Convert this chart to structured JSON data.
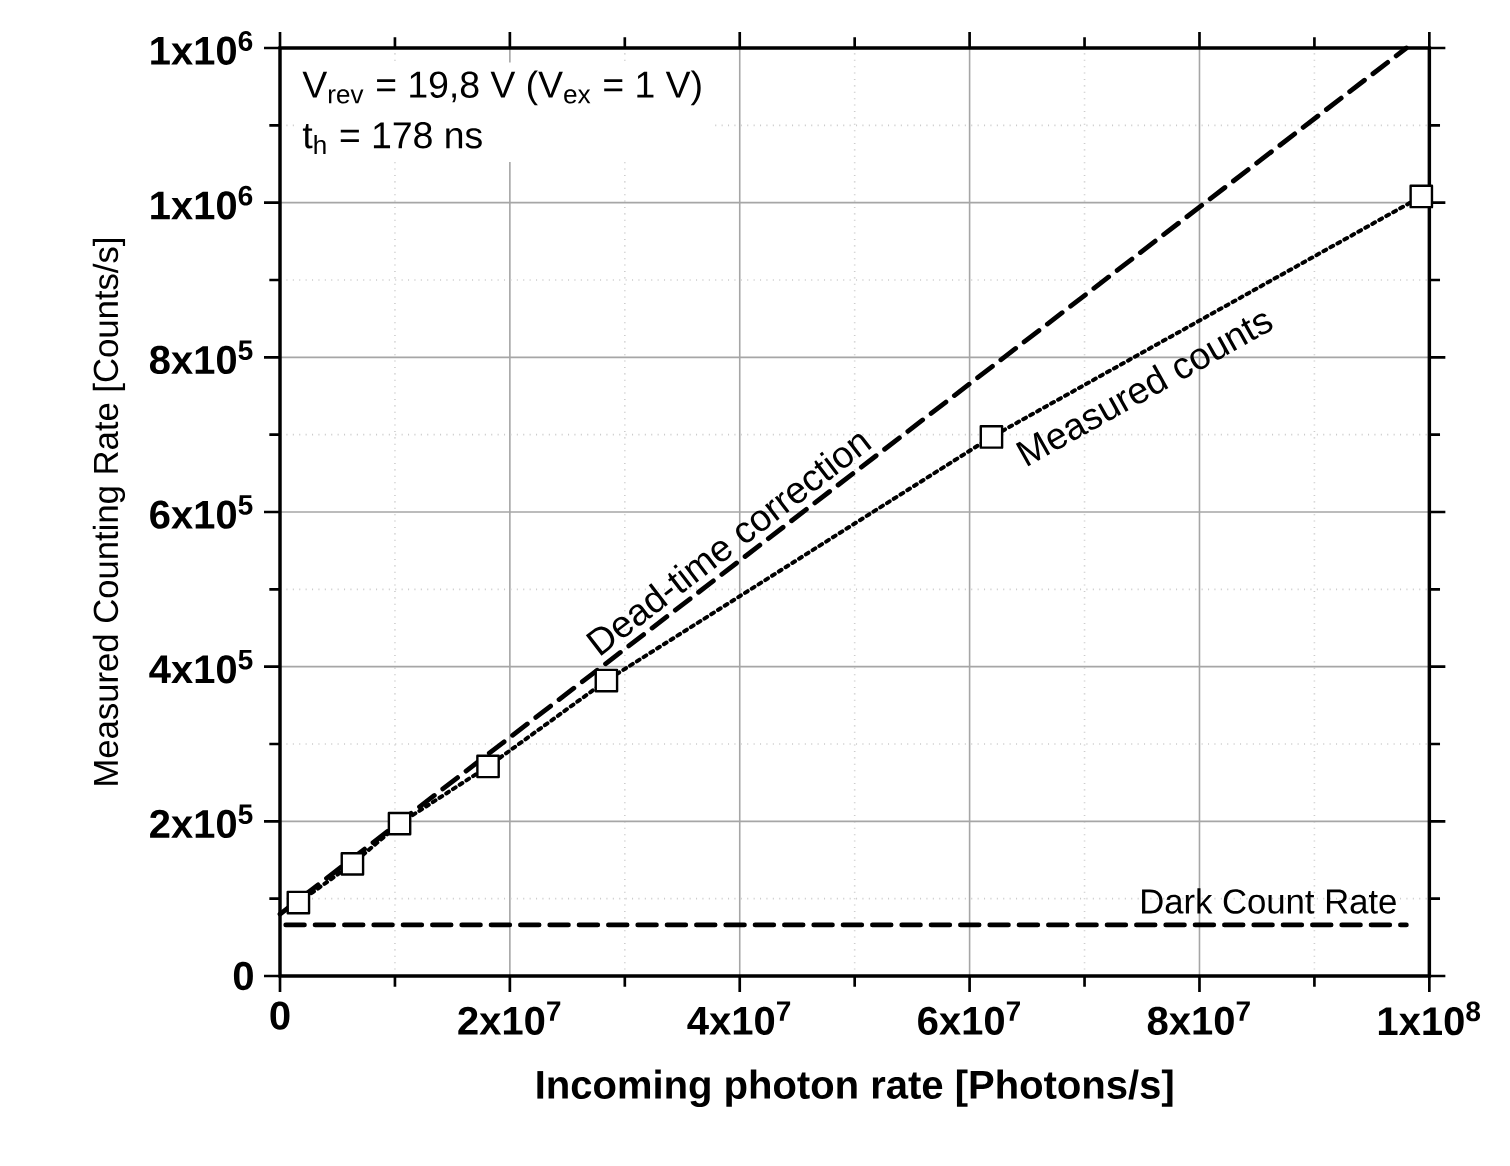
{
  "chart_data": {
    "type": "line",
    "xlabel": "Incoming photon rate [Photons/s]",
    "ylabel": "Measured Counting Rate [Counts/s]",
    "annotations": [
      "V$_{rev}$ = 19,8 V (V$_{ex}$ = 1 V)",
      "t$_{h}$ = 178 ns"
    ],
    "series": [
      {
        "name": "Dead-time correction",
        "color": "#000000",
        "marker": "none",
        "line_style": "dashed",
        "x": [
          0,
          98000000
        ],
        "values": [
          80000,
          1200000
        ]
      },
      {
        "name": "Measured counts",
        "color": "#000000",
        "marker": "square",
        "line_style": "dotted",
        "x": [
          1600000,
          6300000,
          10400000,
          18100000,
          28400000,
          61900000,
          99300000
        ],
        "values": [
          95000,
          145000,
          197000,
          271000,
          382000,
          697000,
          1008000
        ]
      }
    ],
    "ref_lines": [
      {
        "axis": "y",
        "value": 66000,
        "label": "Dark Count Rate",
        "line_style": "dashed",
        "color": "#000000"
      }
    ],
    "xlim": [
      0,
      100000000
    ],
    "ylim": [
      0,
      1200000
    ],
    "xticks": [
      0,
      {
        "value": 20000000,
        "label": "2x10$^{7}$"
      },
      {
        "value": 40000000,
        "label": "4x10$^{7}$"
      },
      {
        "value": 60000000,
        "label": "6x10$^{7}$"
      },
      {
        "value": 80000000,
        "label": "8x10$^{7}$"
      },
      {
        "value": 100000000,
        "label": "1x10$^{8}$"
      }
    ],
    "yticks": [
      0,
      {
        "value": 200000,
        "label": "2x10$^{5}$"
      },
      {
        "value": 400000,
        "label": "4x10$^{5}$"
      },
      {
        "value": 600000,
        "label": "6x10$^{5}$"
      },
      {
        "value": 800000,
        "label": "8x10$^{5}$"
      },
      {
        "value": 1000000,
        "label": "1x10$^{6}$"
      },
      {
        "value": 1200000,
        "label": "1x10$^{6}$"
      }
    ],
    "grid": true
  }
}
